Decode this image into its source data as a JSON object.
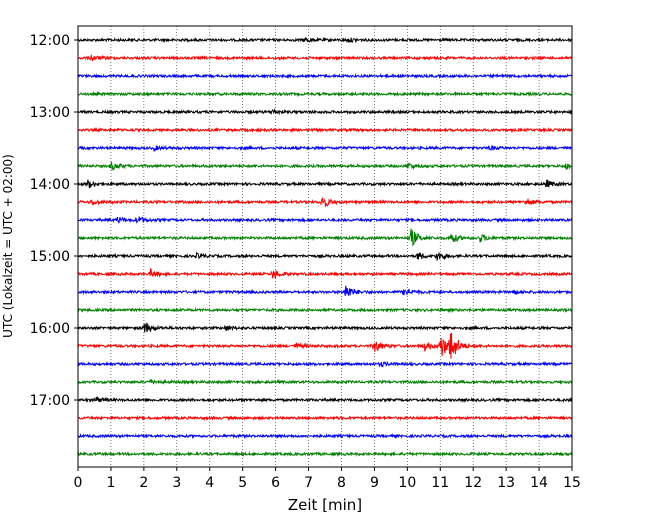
{
  "chart_data": {
    "type": "line",
    "title": "",
    "xlabel": "Zeit  [min]",
    "ylabel": "UTC (Lokalzeit = UTC + 02:00)",
    "xlim": [
      0,
      15
    ],
    "x_ticks": [
      "0",
      "1",
      "2",
      "3",
      "4",
      "5",
      "6",
      "7",
      "8",
      "9",
      "10",
      "11",
      "12",
      "13",
      "14",
      "15"
    ],
    "y_ticks": [
      "12:00",
      "13:00",
      "14:00",
      "15:00",
      "16:00",
      "17:00"
    ],
    "trace_interval_minutes": 15,
    "grid": "vertical dotted at each minute",
    "colors": [
      "#000000",
      "#ff0000",
      "#0000ff",
      "#008000"
    ],
    "traces": [
      {
        "start": "12:00",
        "color": "#000000",
        "events": [
          {
            "t": 6.9,
            "amp": 2
          },
          {
            "t": 8.2,
            "amp": 2
          }
        ]
      },
      {
        "start": "12:15",
        "color": "#ff0000",
        "events": [
          {
            "t": 0.4,
            "amp": 3
          }
        ]
      },
      {
        "start": "12:30",
        "color": "#0000ff",
        "events": []
      },
      {
        "start": "12:45",
        "color": "#008000",
        "events": []
      },
      {
        "start": "13:00",
        "color": "#000000",
        "events": [
          {
            "t": 5.9,
            "amp": 2
          }
        ]
      },
      {
        "start": "13:15",
        "color": "#ff0000",
        "events": []
      },
      {
        "start": "13:30",
        "color": "#0000ff",
        "events": [
          {
            "t": 2.3,
            "amp": 2
          },
          {
            "t": 12.5,
            "amp": 2
          }
        ]
      },
      {
        "start": "13:45",
        "color": "#008000",
        "events": [
          {
            "t": 1.0,
            "amp": 4
          },
          {
            "t": 10.0,
            "amp": 3
          },
          {
            "t": 14.8,
            "amp": 3
          }
        ]
      },
      {
        "start": "14:00",
        "color": "#000000",
        "events": [
          {
            "t": 0.3,
            "amp": 4
          },
          {
            "t": 14.2,
            "amp": 4
          }
        ]
      },
      {
        "start": "14:15",
        "color": "#ff0000",
        "events": [
          {
            "t": 0.4,
            "amp": 3
          },
          {
            "t": 7.4,
            "amp": 7
          },
          {
            "t": 13.6,
            "amp": 4
          }
        ]
      },
      {
        "start": "14:30",
        "color": "#0000ff",
        "events": [
          {
            "t": 1.2,
            "amp": 3
          },
          {
            "t": 1.8,
            "amp": 4
          }
        ]
      },
      {
        "start": "14:45",
        "color": "#008000",
        "events": [
          {
            "t": 10.1,
            "amp": 10
          },
          {
            "t": 11.3,
            "amp": 6
          },
          {
            "t": 12.2,
            "amp": 4
          }
        ]
      },
      {
        "start": "15:00",
        "color": "#000000",
        "events": [
          {
            "t": 3.6,
            "amp": 2
          },
          {
            "t": 10.3,
            "amp": 4
          },
          {
            "t": 10.9,
            "amp": 5
          }
        ]
      },
      {
        "start": "15:15",
        "color": "#ff0000",
        "events": [
          {
            "t": 2.2,
            "amp": 4
          },
          {
            "t": 5.9,
            "amp": 5
          }
        ]
      },
      {
        "start": "15:30",
        "color": "#0000ff",
        "events": [
          {
            "t": 8.1,
            "amp": 9
          },
          {
            "t": 9.9,
            "amp": 5
          },
          {
            "t": 13.2,
            "amp": 2
          }
        ]
      },
      {
        "start": "15:45",
        "color": "#008000",
        "events": []
      },
      {
        "start": "16:00",
        "color": "#000000",
        "events": [
          {
            "t": 2.0,
            "amp": 6
          },
          {
            "t": 4.5,
            "amp": 2
          }
        ]
      },
      {
        "start": "16:15",
        "color": "#ff0000",
        "events": [
          {
            "t": 6.6,
            "amp": 3
          },
          {
            "t": 9.0,
            "amp": 7
          },
          {
            "t": 10.5,
            "amp": 5
          },
          {
            "t": 11.0,
            "amp": 14
          },
          {
            "t": 11.3,
            "amp": 17
          }
        ]
      },
      {
        "start": "16:30",
        "color": "#0000ff",
        "events": [
          {
            "t": 9.2,
            "amp": 2
          }
        ]
      },
      {
        "start": "16:45",
        "color": "#008000",
        "events": [
          {
            "t": 2.2,
            "amp": 2
          }
        ]
      },
      {
        "start": "17:00",
        "color": "#000000",
        "events": [
          {
            "t": 0.5,
            "amp": 3
          }
        ]
      },
      {
        "start": "17:15",
        "color": "#ff0000",
        "events": []
      },
      {
        "start": "17:30",
        "color": "#0000ff",
        "events": []
      },
      {
        "start": "17:45",
        "color": "#008000",
        "events": []
      }
    ]
  }
}
